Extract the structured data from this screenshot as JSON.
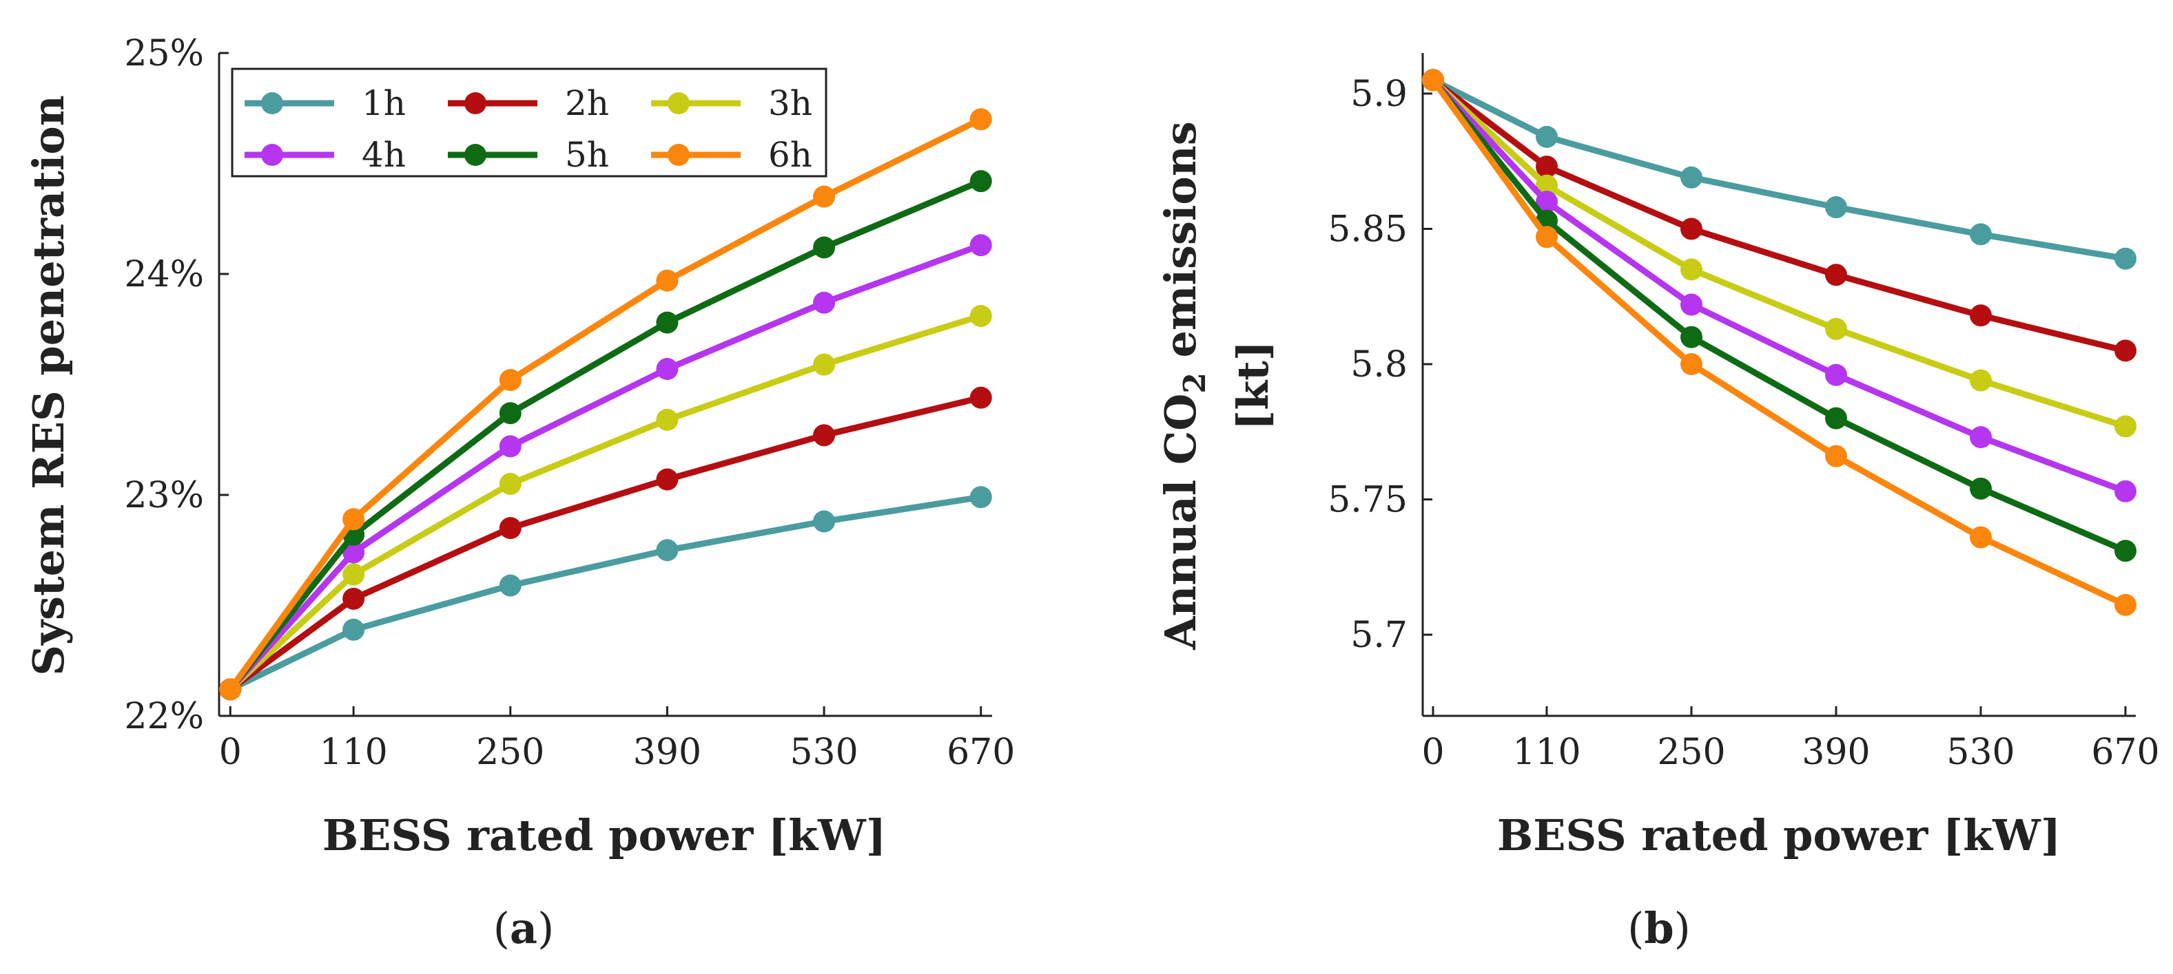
{
  "chart_data": [
    {
      "type": "line",
      "panel_label": "a",
      "xlabel": "BESS rated power [kW]",
      "ylabel": "System RES penetration",
      "x": [
        0,
        110,
        250,
        390,
        530,
        670
      ],
      "x_tick_labels": [
        "0",
        "110",
        "250",
        "390",
        "530",
        "670"
      ],
      "ylim": [
        22,
        25
      ],
      "y_ticks": [
        22,
        23,
        24,
        25
      ],
      "y_tick_labels": [
        "22%",
        "23%",
        "24%",
        "25%"
      ],
      "legend_position": "top-left",
      "series": [
        {
          "name": "1h",
          "color": "#4a9c9f",
          "values": [
            22.12,
            22.39,
            22.59,
            22.75,
            22.88,
            22.99
          ]
        },
        {
          "name": "2h",
          "color": "#b40e10",
          "values": [
            22.12,
            22.53,
            22.85,
            23.07,
            23.27,
            23.44
          ]
        },
        {
          "name": "3h",
          "color": "#c8cc14",
          "values": [
            22.12,
            22.64,
            23.05,
            23.34,
            23.59,
            23.81
          ]
        },
        {
          "name": "4h",
          "color": "#b536ee",
          "values": [
            22.12,
            22.74,
            23.22,
            23.57,
            23.87,
            24.13
          ]
        },
        {
          "name": "5h",
          "color": "#0e6b14",
          "values": [
            22.12,
            22.82,
            23.37,
            23.78,
            24.12,
            24.42
          ]
        },
        {
          "name": "6h",
          "color": "#fb860e",
          "values": [
            22.12,
            22.89,
            23.52,
            23.97,
            24.35,
            24.7
          ]
        }
      ]
    },
    {
      "type": "line",
      "panel_label": "b",
      "xlabel": "BESS rated power [kW]",
      "ylabel_prefix": "Annual CO",
      "ylabel_subscript": "2",
      "ylabel_suffix": " emissions",
      "ylabel_line2": "[kt]",
      "x": [
        0,
        110,
        250,
        390,
        530,
        670
      ],
      "x_tick_labels": [
        "0",
        "110",
        "250",
        "390",
        "530",
        "670"
      ],
      "ylim": [
        5.67,
        5.915
      ],
      "y_ticks": [
        5.7,
        5.75,
        5.8,
        5.85,
        5.9
      ],
      "y_tick_labels": [
        "5.7",
        "5.75",
        "5.8",
        "5.85",
        "5.9"
      ],
      "series": [
        {
          "name": "1h",
          "color": "#4a9c9f",
          "values": [
            5.905,
            5.884,
            5.869,
            5.858,
            5.848,
            5.839
          ]
        },
        {
          "name": "2h",
          "color": "#b40e10",
          "values": [
            5.905,
            5.873,
            5.85,
            5.833,
            5.818,
            5.805
          ]
        },
        {
          "name": "3h",
          "color": "#c8cc14",
          "values": [
            5.905,
            5.866,
            5.835,
            5.813,
            5.794,
            5.777
          ]
        },
        {
          "name": "4h",
          "color": "#b536ee",
          "values": [
            5.905,
            5.86,
            5.822,
            5.796,
            5.773,
            5.753
          ]
        },
        {
          "name": "5h",
          "color": "#0e6b14",
          "values": [
            5.905,
            5.853,
            5.81,
            5.78,
            5.754,
            5.731
          ]
        },
        {
          "name": "6h",
          "color": "#fb860e",
          "values": [
            5.905,
            5.847,
            5.8,
            5.766,
            5.736,
            5.711
          ]
        }
      ]
    }
  ]
}
